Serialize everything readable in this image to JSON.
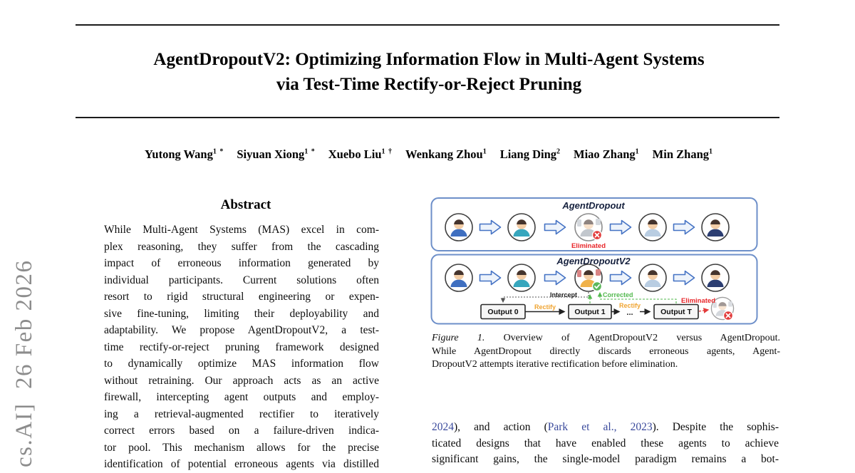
{
  "arxiv_stamp": "cs.AI]  26 Feb 2026",
  "header": {
    "title_line1": "AgentDropoutV2: Optimizing Information Flow in Multi-Agent Systems",
    "title_line2": "via Test-Time Rectify-or-Reject Pruning",
    "authors": [
      {
        "name": "Yutong Wang",
        "sup": "1 *"
      },
      {
        "name": "Siyuan Xiong",
        "sup": "1 *"
      },
      {
        "name": "Xuebo Liu",
        "sup": "1 †"
      },
      {
        "name": "Wenkang Zhou",
        "sup": "1"
      },
      {
        "name": "Liang Ding",
        "sup": "2"
      },
      {
        "name": "Miao Zhang",
        "sup": "1"
      },
      {
        "name": "Min Zhang",
        "sup": "1"
      }
    ]
  },
  "abstract": {
    "heading": "Abstract",
    "lines": [
      "While Multi-Agent Systems (MAS) excel in com-",
      "plex reasoning, they suffer from the cascading",
      "impact of erroneous information generated by",
      "individual participants. Current solutions often",
      "resort to rigid structural engineering or expen-",
      "sive fine-tuning, limiting their deployability and",
      "adaptability. We propose AgentDropoutV2, a test-",
      "time rectify-or-reject pruning framework designed",
      "to dynamically optimize MAS information flow",
      "without retraining. Our approach acts as an active",
      "firewall, intercepting agent outputs and employ-",
      "ing a retrieval-augmented rectifier to iteratively",
      "correct errors based on a failure-driven indica-",
      "tor pool. This mechanism allows for the precise",
      "identification of potential erroneous agents via distilled"
    ]
  },
  "figure": {
    "panel1_title": "AgentDropout",
    "panel2_title": "AgentDropoutV2",
    "eliminated_label": "Eliminated",
    "intercept_label": "Intercept",
    "corrected_label": "Corrected",
    "rectify_label": "Rectify",
    "dots": "...",
    "outputs": [
      "Output 0",
      "Output 1",
      "Output T"
    ]
  },
  "caption": {
    "lines": [
      [
        {
          "t": "Figure 1.",
          "s": "italic"
        },
        {
          "t": " Overview of AgentDropoutV2 versus AgentDropout."
        }
      ],
      [
        {
          "t": "While AgentDropout directly discards erroneous agents, Agent-"
        }
      ],
      [
        {
          "t": "DropoutV2 attempts iterative rectification before elimination."
        }
      ]
    ],
    "last_plain": true
  },
  "body": {
    "lines": [
      [
        {
          "t": "2024",
          "s": "link"
        },
        {
          "t": "), and action ("
        },
        {
          "t": "Park et al., 2023",
          "s": "link"
        },
        {
          "t": "). Despite the sophis-"
        }
      ],
      [
        {
          "t": "ticated designs that have enabled these agents to achieve"
        }
      ],
      [
        {
          "t": "significant gains, the single-model paradigm remains a bot-"
        }
      ]
    ],
    "last_plain": false
  },
  "colors": {
    "citation_link": "#3a4a9c",
    "panel_border": "#6d8fc9",
    "arrow_blue": "#4472c4",
    "eliminated_red": "#e8262a",
    "rectify_orange": "#f0a431",
    "corrected_green": "#53b94f",
    "stamp_gray": "#8c8c8c"
  }
}
